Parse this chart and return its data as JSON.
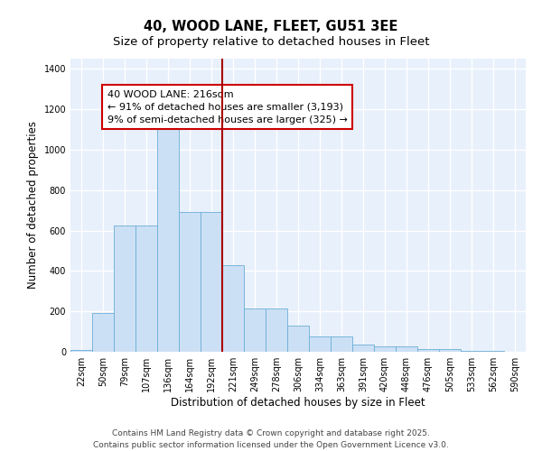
{
  "title_line1": "40, WOOD LANE, FLEET, GU51 3EE",
  "title_line2": "Size of property relative to detached houses in Fleet",
  "xlabel": "Distribution of detached houses by size in Fleet",
  "ylabel": "Number of detached properties",
  "categories": [
    "22sqm",
    "50sqm",
    "79sqm",
    "107sqm",
    "136sqm",
    "164sqm",
    "192sqm",
    "221sqm",
    "249sqm",
    "278sqm",
    "306sqm",
    "334sqm",
    "363sqm",
    "391sqm",
    "420sqm",
    "448sqm",
    "476sqm",
    "505sqm",
    "533sqm",
    "562sqm",
    "590sqm"
  ],
  "values": [
    10,
    190,
    625,
    625,
    1115,
    690,
    690,
    430,
    215,
    215,
    130,
    75,
    75,
    35,
    28,
    28,
    15,
    12,
    4,
    4,
    2
  ],
  "bar_color": "#cce0f5",
  "bar_edge_color": "#6aaed6",
  "vline_color": "#aa0000",
  "annotation_text": "40 WOOD LANE: 216sqm\n← 91% of detached houses are smaller (3,193)\n9% of semi-detached houses are larger (325) →",
  "annotation_box_color": "#cc0000",
  "ylim": [
    0,
    1450
  ],
  "yticks": [
    0,
    200,
    400,
    600,
    800,
    1000,
    1200,
    1400
  ],
  "background_color": "#e8f0fb",
  "grid_color": "#ffffff",
  "footer_line1": "Contains HM Land Registry data © Crown copyright and database right 2025.",
  "footer_line2": "Contains public sector information licensed under the Open Government Licence v3.0.",
  "title_fontsize": 10.5,
  "subtitle_fontsize": 9.5,
  "axis_label_fontsize": 8.5,
  "tick_fontsize": 7,
  "annotation_fontsize": 8,
  "footer_fontsize": 6.5,
  "vline_bar_index": 7
}
